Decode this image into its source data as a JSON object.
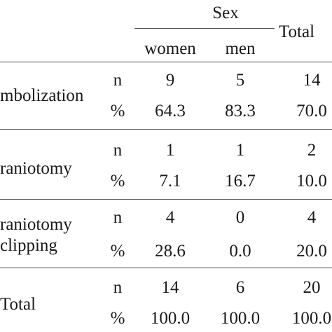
{
  "header": {
    "group_label": "Sex",
    "col_women": "women",
    "col_men": "men",
    "col_total": "Total"
  },
  "rows": [
    {
      "label_lines": [
        "mbolization"
      ],
      "n": {
        "stat": "n",
        "women": "9",
        "men": "5",
        "total": "14"
      },
      "pct": {
        "stat": "%",
        "women": "64.3",
        "men": "83.3",
        "total": "70.0"
      }
    },
    {
      "label_lines": [
        "raniotomy"
      ],
      "n": {
        "stat": "n",
        "women": "1",
        "men": "1",
        "total": "2"
      },
      "pct": {
        "stat": "%",
        "women": "7.1",
        "men": "16.7",
        "total": "10.0"
      }
    },
    {
      "label_lines": [
        "raniotomy",
        "clipping"
      ],
      "n": {
        "stat": "n",
        "women": "4",
        "men": "0",
        "total": "4"
      },
      "pct": {
        "stat": "%",
        "women": "28.6",
        "men": "0.0",
        "total": "20.0"
      }
    },
    {
      "label_lines": [
        "Total"
      ],
      "n": {
        "stat": "n",
        "women": "14",
        "men": "6",
        "total": "20"
      },
      "pct": {
        "stat": "%",
        "women": "100.0",
        "men": "100.0",
        "total": "100.0"
      }
    }
  ]
}
